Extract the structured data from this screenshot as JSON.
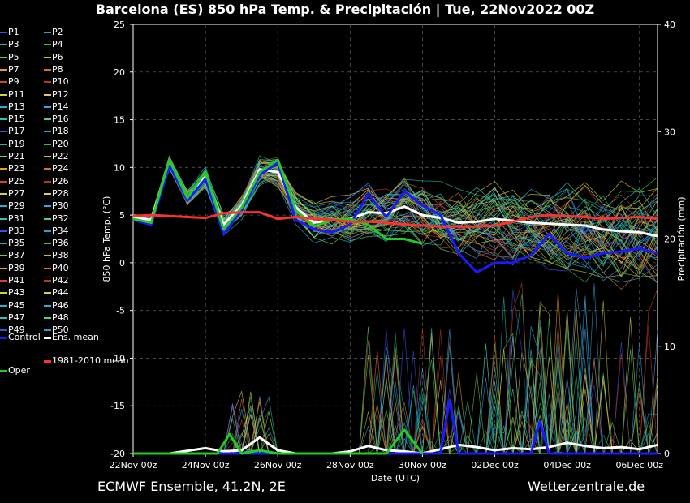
{
  "title": "Barcelona  (ES)  850 hPa Temp. & Precipitación | Tue, 22Nov2022 00Z",
  "footer": {
    "left": "ECMWF Ensemble, 41.2N, 2E",
    "right": "Wetterzentrale.de"
  },
  "chart_data": {
    "type": "line",
    "ylabel": "850 hPa Temp. (°C)",
    "y2label": "Precipitación (mm)",
    "xlabel": "Date (UTC)",
    "ylim": [
      -20,
      25
    ],
    "y2lim": [
      0,
      40
    ],
    "yticks": [
      -20,
      -15,
      -10,
      -5,
      0,
      5,
      10,
      15,
      20,
      25
    ],
    "y2ticks": [
      0,
      10,
      20,
      30,
      40
    ],
    "xlim_hours": [
      0,
      348
    ],
    "xticks": [
      {
        "label": "22Nov 00z",
        "hour": 0
      },
      {
        "label": "24Nov 00z",
        "hour": 48
      },
      {
        "label": "26Nov 00z",
        "hour": 96
      },
      {
        "label": "28Nov 00z",
        "hour": 144
      },
      {
        "label": "30Nov 00z",
        "hour": 192
      },
      {
        "label": "02Dec 00z",
        "hour": 240
      },
      {
        "label": "04Dec 00z",
        "hour": 288
      },
      {
        "label": "06Dec 00z",
        "hour": 336
      }
    ],
    "grid": true,
    "legend_position": "left",
    "members_colors": [
      "#3b4fe0",
      "#2aa0c8",
      "#18b8a0",
      "#28c060",
      "#7ac82a",
      "#c8c030",
      "#e0a020",
      "#d87030",
      "#c84828",
      "#b8381f",
      "#d0d040",
      "#e0c860",
      "#20b0d0",
      "#40a0e0",
      "#30c0b0",
      "#50d080"
    ],
    "members_temp_spread_description_free": null,
    "series": [
      {
        "name": "Ens. mean",
        "color": "#ffffff",
        "kind": "temp",
        "hours": [
          0,
          12,
          24,
          36,
          48,
          60,
          72,
          84,
          96,
          108,
          120,
          132,
          144,
          156,
          168,
          180,
          192,
          204,
          216,
          228,
          240,
          252,
          264,
          276,
          288,
          300,
          312,
          324,
          336,
          348
        ],
        "values": [
          4.8,
          4.5,
          10.5,
          6.8,
          9.0,
          4.0,
          6.0,
          9.8,
          9.5,
          5.8,
          4.2,
          4.5,
          4.6,
          5.3,
          5.2,
          5.9,
          5.0,
          4.7,
          4.2,
          4.3,
          4.6,
          4.4,
          4.2,
          4.1,
          4.0,
          3.9,
          3.5,
          3.3,
          3.2,
          2.8
        ]
      },
      {
        "name": "Control",
        "color": "#1a1aff",
        "kind": "temp",
        "hours": [
          0,
          12,
          24,
          36,
          48,
          60,
          72,
          84,
          96,
          108,
          120,
          132,
          144,
          156,
          168,
          180,
          192,
          204,
          216,
          228,
          240,
          252,
          264,
          276,
          288,
          300,
          312,
          324,
          336,
          348
        ],
        "values": [
          4.5,
          4.0,
          10.2,
          6.5,
          8.8,
          3.0,
          5.5,
          9.2,
          10.5,
          4.5,
          3.5,
          3.2,
          4.0,
          7.2,
          4.8,
          7.5,
          6.0,
          5.0,
          1.0,
          -1.0,
          0.0,
          0.0,
          0.8,
          3.0,
          1.0,
          0.5,
          1.0,
          1.2,
          1.5,
          1.0
        ]
      },
      {
        "name": "Oper",
        "color": "#22cc22",
        "kind": "temp",
        "hours": [
          0,
          12,
          24,
          36,
          48,
          60,
          72,
          84,
          96,
          108,
          120,
          132,
          144,
          156,
          168,
          180,
          192
        ],
        "values": [
          4.6,
          4.2,
          10.8,
          6.8,
          9.5,
          3.5,
          5.8,
          9.5,
          10.8,
          5.5,
          3.8,
          4.5,
          4.6,
          4.0,
          2.5,
          2.5,
          2.0
        ]
      },
      {
        "name": "1981-2010 mean",
        "color": "#ff3030",
        "kind": "temp",
        "hours": [
          0,
          12,
          24,
          36,
          48,
          60,
          72,
          84,
          96,
          108,
          120,
          132,
          144,
          156,
          168,
          180,
          192,
          204,
          216,
          228,
          240,
          252,
          264,
          276,
          288,
          300,
          312,
          324,
          336,
          348
        ],
        "values": [
          4.9,
          5.0,
          4.9,
          4.8,
          4.7,
          5.2,
          5.3,
          5.3,
          4.6,
          4.8,
          4.6,
          4.5,
          4.3,
          4.3,
          4.2,
          4.0,
          3.9,
          3.8,
          3.8,
          3.8,
          3.9,
          4.3,
          4.8,
          5.0,
          4.9,
          4.8,
          4.6,
          4.7,
          4.8,
          4.6
        ]
      },
      {
        "name": "Ens. mean precip",
        "color": "#ffffff",
        "kind": "precip",
        "hours": [
          0,
          24,
          48,
          60,
          72,
          84,
          96,
          108,
          120,
          132,
          144,
          156,
          168,
          180,
          192,
          204,
          216,
          228,
          240,
          252,
          264,
          276,
          288,
          300,
          312,
          324,
          336,
          348
        ],
        "values": [
          0,
          0,
          0.5,
          0.2,
          0.3,
          1.5,
          0.3,
          0,
          0,
          0,
          0.2,
          0.7,
          0.3,
          0.2,
          0,
          0.4,
          0.8,
          0.6,
          0.3,
          0.5,
          0.4,
          0.6,
          1.0,
          0.7,
          0.5,
          0.6,
          0.4,
          0.8
        ]
      },
      {
        "name": "Control precip",
        "color": "#1a1aff",
        "kind": "precip",
        "hours": [
          0,
          180,
          192,
          200,
          204,
          210,
          216,
          222,
          228,
          240,
          252,
          264,
          270,
          276,
          288,
          300,
          312,
          324,
          336,
          348
        ],
        "values": [
          0,
          0,
          0,
          0,
          0,
          5,
          0,
          0,
          0,
          0,
          0,
          0,
          3,
          0,
          0,
          0,
          0,
          0,
          0,
          0
        ]
      },
      {
        "name": "Oper precip",
        "color": "#22cc22",
        "kind": "precip",
        "hours": [
          0,
          24,
          48,
          56,
          64,
          72,
          84,
          96,
          108,
          120,
          132,
          144,
          156,
          168,
          180,
          192
        ],
        "values": [
          0,
          0,
          0,
          0,
          1.8,
          0,
          0.3,
          0,
          0,
          0,
          0,
          0,
          0,
          0,
          2.2,
          0
        ]
      }
    ],
    "legend_entries": [
      "P1",
      "P2",
      "P3",
      "P4",
      "P5",
      "P6",
      "P7",
      "P8",
      "P9",
      "P10",
      "P11",
      "P12",
      "P13",
      "P14",
      "P15",
      "P16",
      "P17",
      "P18",
      "P19",
      "P20",
      "P21",
      "P22",
      "P23",
      "P24",
      "P25",
      "P26",
      "P27",
      "P28",
      "P29",
      "P30",
      "P31",
      "P32",
      "P33",
      "P34",
      "P35",
      "P36",
      "P37",
      "P38",
      "P39",
      "P40",
      "P41",
      "P42",
      "P43",
      "P44",
      "P45",
      "P46",
      "P47",
      "P48",
      "P49",
      "P50"
    ],
    "legend_special": [
      {
        "name": "Control",
        "color": "#1a1aff"
      },
      {
        "name": "Ens. mean",
        "color": "#ffffff"
      },
      {
        "name": "1981-2010 mean",
        "color": "#ff3030"
      },
      {
        "name": "Oper",
        "color": "#22cc22"
      }
    ]
  }
}
